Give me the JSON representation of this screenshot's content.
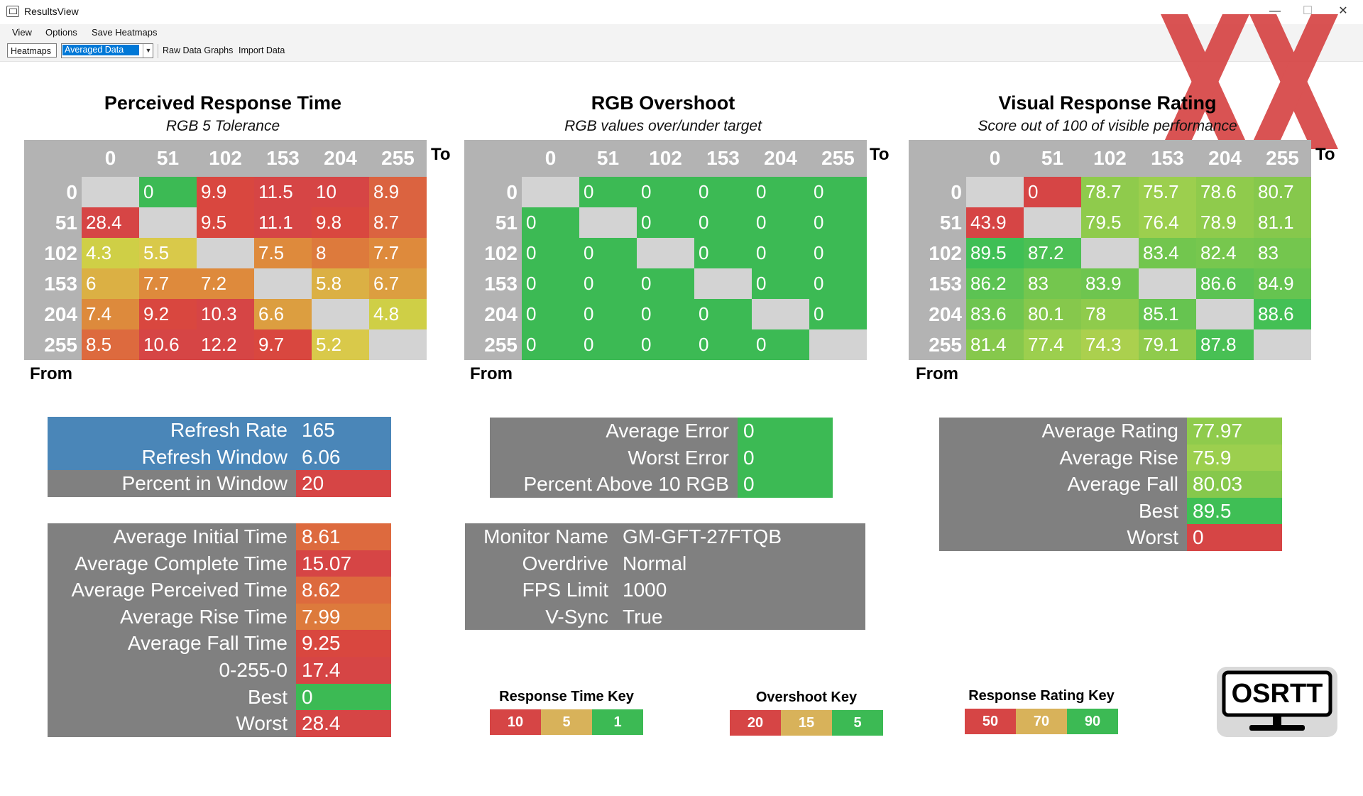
{
  "window": {
    "title": "ResultsView",
    "minimize": "—",
    "maximize": "☐",
    "close": "✕"
  },
  "menu": [
    "View",
    "Options",
    "Save Heatmaps"
  ],
  "toolbar": {
    "heatmaps": "Heatmaps",
    "mode_selected": "Averaged Data",
    "raw_graphs": "Raw Data Graphs",
    "import": "Import Data"
  },
  "watermark": "XX",
  "axis": {
    "to": "To",
    "from": "From"
  },
  "colors": {
    "red": "#d64545",
    "orange": "#dd8a3c",
    "yellow": "#d9c94a",
    "yellow_green": "#a9d04e",
    "green": "#3cba54",
    "blue": "#4a86b8",
    "grey": "#808080"
  },
  "heatmaps": [
    {
      "title": "Perceived Response Time",
      "subtitle": "RGB 5 Tolerance",
      "columns": [
        "0",
        "51",
        "102",
        "153",
        "204",
        "255"
      ],
      "rows": [
        "0",
        "51",
        "102",
        "153",
        "204",
        "255"
      ],
      "values": [
        [
          "",
          "0",
          "9.9",
          "11.5",
          "10",
          "8.9"
        ],
        [
          "28.4",
          "",
          "9.5",
          "11.1",
          "9.8",
          "8.7"
        ],
        [
          "4.3",
          "5.5",
          "",
          "7.5",
          "8",
          "7.7"
        ],
        [
          "6",
          "7.7",
          "7.2",
          "",
          "5.8",
          "6.7"
        ],
        [
          "7.4",
          "9.2",
          "10.3",
          "6.6",
          "",
          "4.8"
        ],
        [
          "8.5",
          "10.6",
          "12.2",
          "9.7",
          "5.2",
          ""
        ]
      ],
      "cell_colors": [
        [
          "",
          "#3cba54",
          "#d9473f",
          "#d64545",
          "#d64545",
          "#db6340"
        ],
        [
          "#d64545",
          "",
          "#d9473f",
          "#d64545",
          "#d9473f",
          "#db6340"
        ],
        [
          "#cfcf46",
          "#d9c94a",
          "",
          "#de8a3c",
          "#dd7a3c",
          "#de8a3c"
        ],
        [
          "#dbb044",
          "#de8a3c",
          "#de8a3c",
          "",
          "#dbb044",
          "#dc9e40"
        ],
        [
          "#dd8a3c",
          "#d9473f",
          "#d64545",
          "#dc9e40",
          "",
          "#cfcf46"
        ],
        [
          "#dd6a3e",
          "#d64545",
          "#d64545",
          "#d9473f",
          "#d9c94a",
          ""
        ]
      ]
    },
    {
      "title": "RGB Overshoot",
      "subtitle": "RGB values over/under target",
      "columns": [
        "0",
        "51",
        "102",
        "153",
        "204",
        "255"
      ],
      "rows": [
        "0",
        "51",
        "102",
        "153",
        "204",
        "255"
      ],
      "values": [
        [
          "",
          "0",
          "0",
          "0",
          "0",
          "0"
        ],
        [
          "0",
          "",
          "0",
          "0",
          "0",
          "0"
        ],
        [
          "0",
          "0",
          "",
          "0",
          "0",
          "0"
        ],
        [
          "0",
          "0",
          "0",
          "",
          "0",
          "0"
        ],
        [
          "0",
          "0",
          "0",
          "0",
          "",
          "0"
        ],
        [
          "0",
          "0",
          "0",
          "0",
          "0",
          ""
        ]
      ],
      "cell_colors": [
        [
          "",
          "#3cba54",
          "#3cba54",
          "#3cba54",
          "#3cba54",
          "#3cba54"
        ],
        [
          "#3cba54",
          "",
          "#3cba54",
          "#3cba54",
          "#3cba54",
          "#3cba54"
        ],
        [
          "#3cba54",
          "#3cba54",
          "",
          "#3cba54",
          "#3cba54",
          "#3cba54"
        ],
        [
          "#3cba54",
          "#3cba54",
          "#3cba54",
          "",
          "#3cba54",
          "#3cba54"
        ],
        [
          "#3cba54",
          "#3cba54",
          "#3cba54",
          "#3cba54",
          "",
          "#3cba54"
        ],
        [
          "#3cba54",
          "#3cba54",
          "#3cba54",
          "#3cba54",
          "#3cba54",
          ""
        ]
      ]
    },
    {
      "title": "Visual Response Rating",
      "subtitle": "Score out of 100 of visible performance",
      "columns": [
        "0",
        "51",
        "102",
        "153",
        "204",
        "255"
      ],
      "rows": [
        "0",
        "51",
        "102",
        "153",
        "204",
        "255"
      ],
      "values": [
        [
          "",
          "0",
          "78.7",
          "75.7",
          "78.6",
          "80.7"
        ],
        [
          "43.9",
          "",
          "79.5",
          "76.4",
          "78.9",
          "81.1"
        ],
        [
          "89.5",
          "87.2",
          "",
          "83.4",
          "82.4",
          "83"
        ],
        [
          "86.2",
          "83",
          "83.9",
          "",
          "86.6",
          "84.9"
        ],
        [
          "83.6",
          "80.1",
          "78",
          "85.1",
          "",
          "88.6"
        ],
        [
          "81.4",
          "77.4",
          "74.3",
          "79.1",
          "87.8",
          ""
        ]
      ],
      "cell_colors": [
        [
          "",
          "#d64545",
          "#8fcb4c",
          "#9ccf4e",
          "#8fcb4c",
          "#86c84c"
        ],
        [
          "#d64545",
          "",
          "#8fcb4c",
          "#9ccf4e",
          "#8fcb4c",
          "#86c84c"
        ],
        [
          "#3fbf55",
          "#4cc054",
          "",
          "#72c64e",
          "#77c74e",
          "#74c64e"
        ],
        [
          "#5cc353",
          "#74c64e",
          "#6ec54f",
          "",
          "#5cc353",
          "#66c450"
        ],
        [
          "#6ec54f",
          "#86c84c",
          "#8fcb4c",
          "#66c450",
          "",
          "#44c055"
        ],
        [
          "#86c84c",
          "#9ccf4e",
          "#abd04e",
          "#8fcb4c",
          "#48c054",
          ""
        ]
      ]
    }
  ],
  "refresh_stats": [
    {
      "label": "Refresh Rate",
      "value": "165",
      "label_color": "#4a86b8",
      "value_color": "#4a86b8"
    },
    {
      "label": "Refresh Window",
      "value": "6.06",
      "label_color": "#4a86b8",
      "value_color": "#4a86b8"
    },
    {
      "label": "Percent in Window",
      "value": "20",
      "label_color": "#808080",
      "value_color": "#d64545"
    }
  ],
  "time_stats": [
    {
      "label": "Average Initial Time",
      "value": "8.61",
      "value_color": "#dd6a3e"
    },
    {
      "label": "Average Complete Time",
      "value": "15.07",
      "value_color": "#d64545"
    },
    {
      "label": "Average Perceived Time",
      "value": "8.62",
      "value_color": "#dd6a3e"
    },
    {
      "label": "Average Rise Time",
      "value": "7.99",
      "value_color": "#dd7a3c"
    },
    {
      "label": "Average Fall Time",
      "value": "9.25",
      "value_color": "#d9473f"
    },
    {
      "label": "0-255-0",
      "value": "17.4",
      "value_color": "#d64545"
    },
    {
      "label": "Best",
      "value": "0",
      "value_color": "#3cba54"
    },
    {
      "label": "Worst",
      "value": "28.4",
      "value_color": "#d64545"
    }
  ],
  "error_stats": [
    {
      "label": "Average Error",
      "value": "0",
      "value_color": "#3cba54"
    },
    {
      "label": "Worst Error",
      "value": "0",
      "value_color": "#3cba54"
    },
    {
      "label": "Percent Above 10 RGB",
      "value": "0",
      "value_color": "#3cba54"
    }
  ],
  "monitor_info": [
    {
      "label": "Monitor Name",
      "value": "GM-GFT-27FTQB"
    },
    {
      "label": "Overdrive",
      "value": "Normal"
    },
    {
      "label": "FPS Limit",
      "value": "1000"
    },
    {
      "label": "V-Sync",
      "value": "True"
    }
  ],
  "rating_stats": [
    {
      "label": "Average Rating",
      "value": "77.97",
      "value_color": "#8fcb4c"
    },
    {
      "label": "Average Rise",
      "value": "75.9",
      "value_color": "#9ccf4e"
    },
    {
      "label": "Average Fall",
      "value": "80.03",
      "value_color": "#86c84c"
    },
    {
      "label": "Best",
      "value": "89.5",
      "value_color": "#3fbf55"
    },
    {
      "label": "Worst",
      "value": "0",
      "value_color": "#d64545"
    }
  ],
  "keys": [
    {
      "title": "Response Time Key",
      "items": [
        {
          "label": "10",
          "color": "#d64545"
        },
        {
          "label": "5",
          "color": "#d8b25a"
        },
        {
          "label": "1",
          "color": "#3cba54"
        }
      ]
    },
    {
      "title": "Overshoot Key",
      "items": [
        {
          "label": "20",
          "color": "#d64545"
        },
        {
          "label": "15",
          "color": "#d8b25a"
        },
        {
          "label": "5",
          "color": "#3cba54"
        }
      ]
    },
    {
      "title": "Response Rating Key",
      "items": [
        {
          "label": "50",
          "color": "#d64545"
        },
        {
          "label": "70",
          "color": "#d8b25a"
        },
        {
          "label": "90",
          "color": "#3cba54"
        }
      ]
    }
  ],
  "logo": {
    "text": "OSRTT"
  }
}
